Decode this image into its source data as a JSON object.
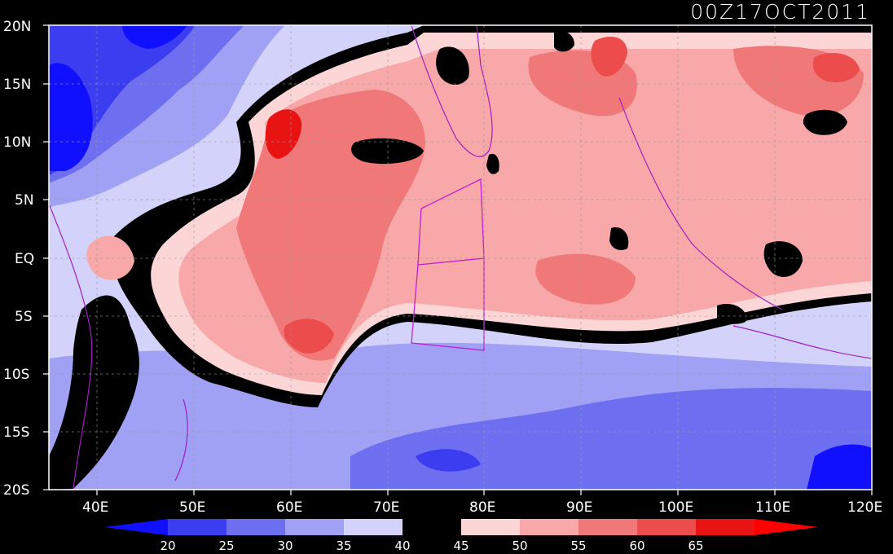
{
  "title": "00Z17OCT2011",
  "map": {
    "lat_labels": [
      "20N",
      "15N",
      "10N",
      "5N",
      "EQ",
      "5S",
      "10S",
      "15S",
      "20S"
    ],
    "lon_labels": [
      "40E",
      "50E",
      "60E",
      "70E",
      "80E",
      "90E",
      "100E",
      "110E",
      "120E"
    ]
  },
  "colorbar": {
    "labels": [
      "20",
      "25",
      "30",
      "35",
      "40",
      "45",
      "50",
      "55",
      "60",
      "65"
    ],
    "colors": [
      "#1010ff",
      "#3c3cf0",
      "#6e6ef0",
      "#a0a0f5",
      "#d2d2fa",
      "#000000",
      "#fcd6d6",
      "#f8a8a8",
      "#f07878",
      "#ec4c4c",
      "#e81414",
      "#ff0000"
    ]
  }
}
